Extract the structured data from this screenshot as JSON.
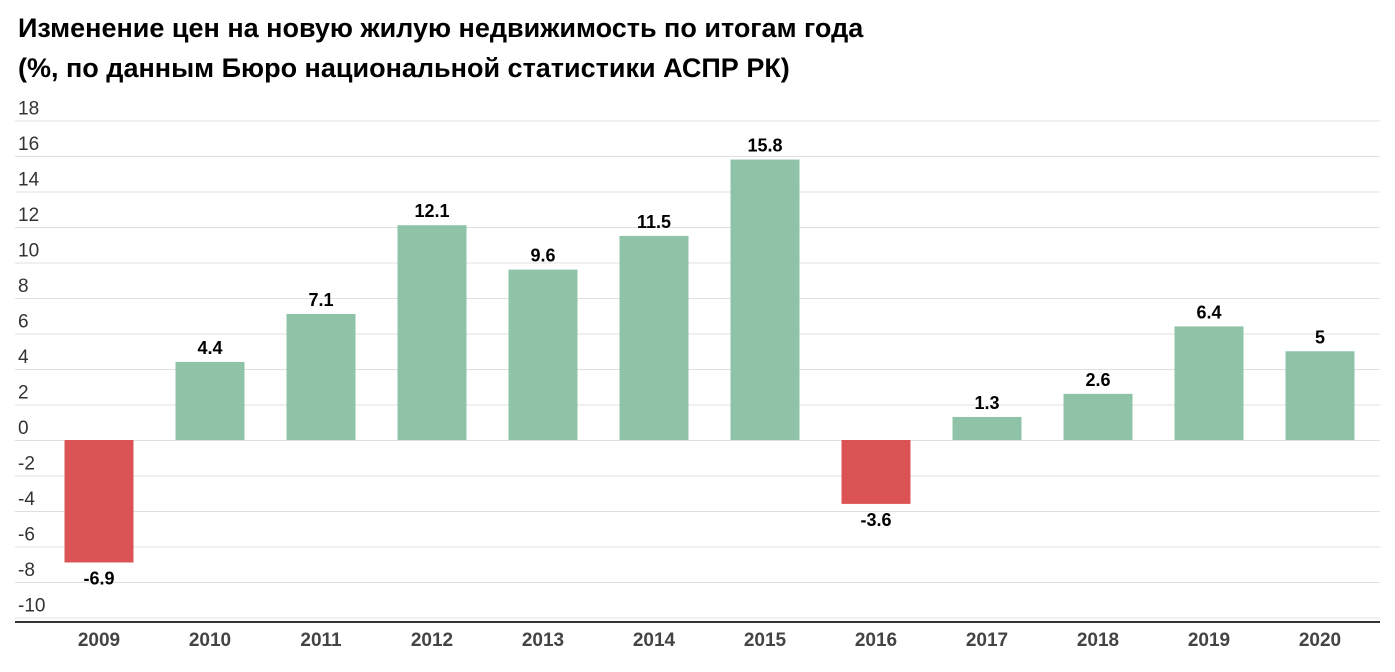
{
  "title_line1": "Изменение цен на новую жилую недвижимость по итогам года",
  "title_line2": "(%, по данным Бюро национальной статистики АСПР РК)",
  "chart_data": {
    "type": "bar",
    "title": "Изменение цен на новую жилую недвижимость по итогам года",
    "subtitle": "(%, по данным Бюро национальной статистики АСПР РК)",
    "categories": [
      "2009",
      "2010",
      "2011",
      "2012",
      "2013",
      "2014",
      "2015",
      "2016",
      "2017",
      "2018",
      "2019",
      "2020"
    ],
    "values": [
      -6.9,
      4.4,
      7.1,
      12.1,
      9.6,
      11.5,
      15.8,
      -3.6,
      1.3,
      2.6,
      6.4,
      5
    ],
    "data_labels": [
      "-6.9",
      "4.4",
      "7.1",
      "12.1",
      "9.6",
      "11.5",
      "15.8",
      "-3.6",
      "1.3",
      "2.6",
      "6.4",
      "5"
    ],
    "yticks": [
      "18",
      "16",
      "14",
      "12",
      "10",
      "8",
      "6",
      "4",
      "2",
      "0",
      "-2",
      "-4",
      "-6",
      "-8",
      "-10"
    ],
    "ylim": [
      -10,
      18
    ],
    "xlabel": "",
    "ylabel": "",
    "grid": true,
    "colors": {
      "positive": "#8fc3a8",
      "negative": "#dc5356",
      "grid": "#e0e0e0",
      "axis": "#333333"
    }
  }
}
